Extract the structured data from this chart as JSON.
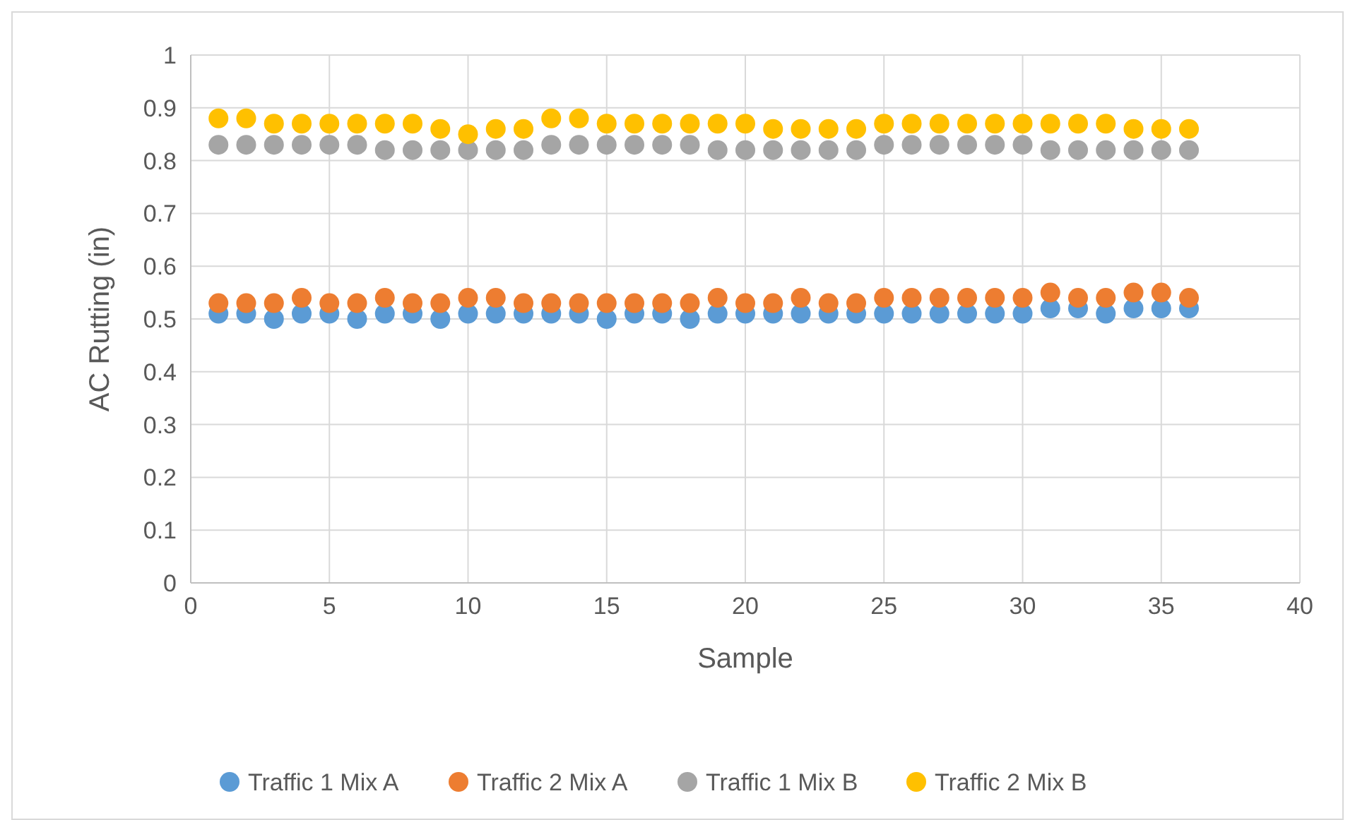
{
  "chart_data": {
    "type": "scatter",
    "xlabel": "Sample",
    "ylabel": "AC Rutting (in)",
    "x": [
      1,
      2,
      3,
      4,
      5,
      6,
      7,
      8,
      9,
      10,
      11,
      12,
      13,
      14,
      15,
      16,
      17,
      18,
      19,
      20,
      21,
      22,
      23,
      24,
      25,
      26,
      27,
      28,
      29,
      30,
      31,
      32,
      33,
      34,
      35,
      36
    ],
    "series": [
      {
        "name": "Traffic 1 Mix A",
        "color": "#5b9bd5",
        "values": [
          0.51,
          0.51,
          0.5,
          0.51,
          0.51,
          0.5,
          0.51,
          0.51,
          0.5,
          0.51,
          0.51,
          0.51,
          0.51,
          0.51,
          0.5,
          0.51,
          0.51,
          0.5,
          0.51,
          0.51,
          0.51,
          0.51,
          0.51,
          0.51,
          0.51,
          0.51,
          0.51,
          0.51,
          0.51,
          0.51,
          0.52,
          0.52,
          0.51,
          0.52,
          0.52,
          0.52
        ]
      },
      {
        "name": "Traffic 2 Mix A",
        "color": "#ed7d31",
        "values": [
          0.53,
          0.53,
          0.53,
          0.54,
          0.53,
          0.53,
          0.54,
          0.53,
          0.53,
          0.54,
          0.54,
          0.53,
          0.53,
          0.53,
          0.53,
          0.53,
          0.53,
          0.53,
          0.54,
          0.53,
          0.53,
          0.54,
          0.53,
          0.53,
          0.54,
          0.54,
          0.54,
          0.54,
          0.54,
          0.54,
          0.55,
          0.54,
          0.54,
          0.55,
          0.55,
          0.54
        ]
      },
      {
        "name": "Traffic 1 Mix B",
        "color": "#a5a5a5",
        "values": [
          0.83,
          0.83,
          0.83,
          0.83,
          0.83,
          0.83,
          0.82,
          0.82,
          0.82,
          0.82,
          0.82,
          0.82,
          0.83,
          0.83,
          0.83,
          0.83,
          0.83,
          0.83,
          0.82,
          0.82,
          0.82,
          0.82,
          0.82,
          0.82,
          0.83,
          0.83,
          0.83,
          0.83,
          0.83,
          0.83,
          0.82,
          0.82,
          0.82,
          0.82,
          0.82,
          0.82
        ]
      },
      {
        "name": "Traffic 2 Mix B",
        "color": "#ffc000",
        "values": [
          0.88,
          0.88,
          0.87,
          0.87,
          0.87,
          0.87,
          0.87,
          0.87,
          0.86,
          0.85,
          0.86,
          0.86,
          0.88,
          0.88,
          0.87,
          0.87,
          0.87,
          0.87,
          0.87,
          0.87,
          0.86,
          0.86,
          0.86,
          0.86,
          0.87,
          0.87,
          0.87,
          0.87,
          0.87,
          0.87,
          0.87,
          0.87,
          0.87,
          0.86,
          0.86,
          0.86
        ]
      }
    ],
    "xlim": [
      0,
      40
    ],
    "xticks": [
      0,
      5,
      10,
      15,
      20,
      25,
      30,
      35,
      40
    ],
    "ylim": [
      0,
      1
    ],
    "yticks": [
      0,
      0.1,
      0.2,
      0.3,
      0.4,
      0.5,
      0.6,
      0.7,
      0.8,
      0.9,
      1
    ],
    "grid": true,
    "legend": "bottom",
    "marker": "circle"
  }
}
